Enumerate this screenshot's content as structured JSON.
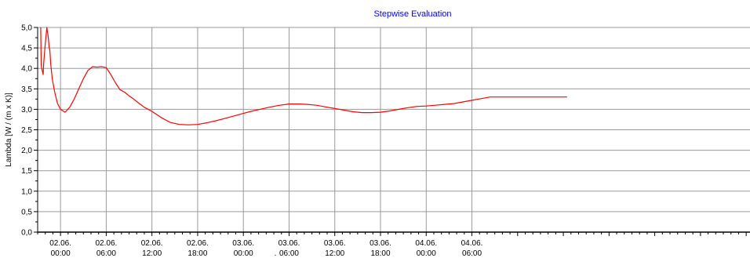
{
  "chart_data": {
    "type": "line",
    "title": "Stepwise Evaluation",
    "title_color": "#0000ff",
    "ylabel": "Lambda [W / (m x K)]",
    "xlabel": "",
    "ylim": [
      0,
      5
    ],
    "xlim": [
      "2025-06-01 21:00",
      "2025-06-05 18:30"
    ],
    "yticks": [
      "0,0",
      "0,5",
      "1,0",
      "1,5",
      "2,0",
      "2,5",
      "3,0",
      "3,5",
      "4,0",
      "4,5",
      "5,0"
    ],
    "xticks": [
      {
        "date": "02.06.",
        "time": "00:00"
      },
      {
        "date": "02.06.",
        "time": "06:00"
      },
      {
        "date": "02.06.",
        "time": "12:00"
      },
      {
        "date": "02.06.",
        "time": "18:00"
      },
      {
        "date": "03.06.",
        "time": "00:00"
      },
      {
        "date": "03.06.",
        "time": "06:00"
      },
      {
        "date": "03.06.",
        "time": "12:00"
      },
      {
        "date": "03.06.",
        "time": "18:00"
      },
      {
        "date": "04.06.",
        "time": "00:00"
      },
      {
        "date": "04.06.",
        "time": "06:00"
      }
    ],
    "stray_mark": ".",
    "grid": true,
    "line_color": "#ff0000",
    "series": [
      {
        "x": [
          "2025-06-01 21:24",
          "2025-06-01 21:28",
          "2025-06-01 21:31",
          "2025-06-01 21:36",
          "2025-06-01 21:43",
          "2025-06-01 21:48",
          "2025-06-01 22:00",
          "2025-06-01 22:12",
          "2025-06-01 22:24",
          "2025-06-01 22:31",
          "2025-06-01 22:36",
          "2025-06-01 22:43",
          "2025-06-01 22:55",
          "2025-06-01 23:12",
          "2025-06-01 23:36",
          "2025-06-02 00:00",
          "2025-06-02 00:36",
          "2025-06-02 01:12",
          "2025-06-02 01:48",
          "2025-06-02 02:24",
          "2025-06-02 03:00",
          "2025-06-02 03:36",
          "2025-06-02 04:12",
          "2025-06-02 04:48",
          "2025-06-02 05:24",
          "2025-06-02 06:00",
          "2025-06-02 06:36",
          "2025-06-02 07:12",
          "2025-06-02 07:48",
          "2025-06-02 08:24",
          "2025-06-02 09:00",
          "2025-06-02 09:36",
          "2025-06-02 10:12",
          "2025-06-02 11:00",
          "2025-06-02 12:00",
          "2025-06-02 13:12",
          "2025-06-02 14:24",
          "2025-06-02 15:36",
          "2025-06-02 16:48",
          "2025-06-02 18:00",
          "2025-06-02 19:12",
          "2025-06-02 20:24",
          "2025-06-02 21:36",
          "2025-06-02 22:48",
          "2025-06-03 00:00",
          "2025-06-03 01:12",
          "2025-06-03 02:24",
          "2025-06-03 03:36",
          "2025-06-03 04:48",
          "2025-06-03 06:00",
          "2025-06-03 07:12",
          "2025-06-03 08:24",
          "2025-06-03 09:36",
          "2025-06-03 10:48",
          "2025-06-03 12:00",
          "2025-06-03 13:12",
          "2025-06-03 14:24",
          "2025-06-03 15:36",
          "2025-06-03 16:48",
          "2025-06-03 18:00",
          "2025-06-03 19:12",
          "2025-06-03 20:24",
          "2025-06-03 21:36",
          "2025-06-03 22:48",
          "2025-06-04 00:00",
          "2025-06-04 01:12",
          "2025-06-04 02:24",
          "2025-06-04 03:36",
          "2025-06-04 04:48",
          "2025-06-04 06:00",
          "2025-06-04 07:12",
          "2025-06-04 08:24",
          "2025-06-04 09:36",
          "2025-06-04 10:48",
          "2025-06-04 12:00",
          "2025-06-04 13:12",
          "2025-06-04 14:24",
          "2025-06-04 15:36",
          "2025-06-04 16:48",
          "2025-06-04 18:00",
          "2025-06-04 18:30"
        ],
        "y": [
          5.0,
          4.1,
          4.02,
          3.95,
          3.85,
          4.15,
          4.6,
          5.0,
          4.75,
          4.5,
          4.45,
          4.1,
          3.75,
          3.45,
          3.15,
          3.0,
          2.93,
          3.05,
          3.25,
          3.5,
          3.75,
          3.95,
          4.04,
          4.03,
          4.04,
          4.02,
          3.85,
          3.65,
          3.48,
          3.42,
          3.33,
          3.25,
          3.16,
          3.05,
          2.95,
          2.8,
          2.68,
          2.63,
          2.62,
          2.63,
          2.67,
          2.72,
          2.78,
          2.84,
          2.9,
          2.96,
          3.01,
          3.06,
          3.1,
          3.13,
          3.13,
          3.12,
          3.1,
          3.06,
          3.02,
          2.98,
          2.94,
          2.92,
          2.92,
          2.93,
          2.96,
          3.0,
          3.04,
          3.07,
          3.08,
          3.1,
          3.12,
          3.14,
          3.18,
          3.22,
          3.26,
          3.3,
          3.3,
          3.3,
          3.3,
          3.3,
          3.3,
          3.3,
          3.3,
          3.3,
          3.3
        ]
      }
    ]
  }
}
